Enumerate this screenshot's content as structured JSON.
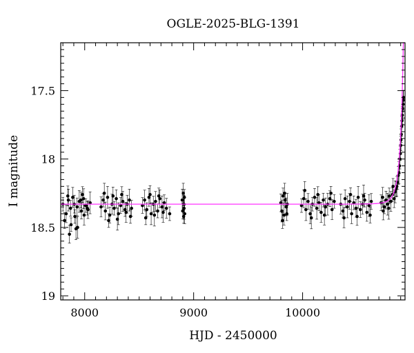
{
  "chart_data": {
    "type": "scatter",
    "title": "OGLE-2025-BLG-1391",
    "xlabel": "HJD - 2450000",
    "ylabel": "I magnitude",
    "xlim": [
      7780,
      10940
    ],
    "ylim": [
      17.15,
      19.03
    ],
    "y_inverted": true,
    "xticks": [
      8000,
      9000,
      10000
    ],
    "yticks": [
      17.5,
      18,
      18.5,
      19
    ],
    "ytick_labels": [
      "17.5",
      "18",
      "18.5",
      "19"
    ],
    "xtick_labels": [
      "8000",
      "9000",
      "10000"
    ],
    "baseline_mag": 18.33,
    "model_color": "#ff33ff",
    "marker_color": "#000000",
    "series": [
      {
        "values_note": "season",
        "x": [
          7800,
          7830,
          7850,
          7870,
          7890,
          7910,
          7930,
          7950,
          7970,
          7990,
          8010,
          8030,
          8050,
          7815,
          7845,
          7875,
          7905,
          7935,
          7965,
          7995,
          8025,
          7860,
          7920,
          7980
        ],
        "y": [
          18.33,
          18.4,
          18.3,
          18.36,
          18.28,
          18.42,
          18.35,
          18.31,
          18.38,
          18.29,
          18.34,
          18.37,
          18.32,
          18.45,
          18.27,
          18.48,
          18.33,
          18.5,
          18.3,
          18.41,
          18.36,
          18.55,
          18.51,
          18.26
        ]
      },
      {
        "values_note": "season",
        "x": [
          8150,
          8170,
          8190,
          8210,
          8230,
          8250,
          8270,
          8290,
          8310,
          8330,
          8350,
          8370,
          8390,
          8410,
          8430,
          8180,
          8220,
          8260,
          8300,
          8340,
          8380,
          8420
        ],
        "y": [
          18.35,
          18.3,
          18.38,
          18.28,
          18.41,
          18.33,
          18.36,
          18.29,
          18.4,
          18.34,
          18.31,
          18.37,
          18.33,
          18.3,
          18.36,
          18.25,
          18.45,
          18.27,
          18.44,
          18.26,
          18.39,
          18.42
        ]
      },
      {
        "values_note": "season",
        "x": [
          8530,
          8550,
          8570,
          8590,
          8610,
          8630,
          8650,
          8670,
          8690,
          8710,
          8730,
          8750,
          8560,
          8600,
          8640,
          8680,
          8720,
          8780
        ],
        "y": [
          18.34,
          18.3,
          18.37,
          18.28,
          18.4,
          18.33,
          18.31,
          18.38,
          18.29,
          18.35,
          18.32,
          18.36,
          18.43,
          18.26,
          18.41,
          18.27,
          18.39,
          18.4
        ]
      },
      {
        "values_note": "season",
        "x": [
          8895,
          8900,
          8905,
          8908,
          8910,
          8912,
          8915,
          8918
        ],
        "y": [
          18.3,
          18.38,
          18.25,
          18.42,
          18.33,
          18.36,
          18.28,
          18.4
        ]
      },
      {
        "values_note": "season",
        "x": [
          9800,
          9810,
          9820,
          9830,
          9840,
          9850,
          9860,
          9815,
          9835,
          9855
        ],
        "y": [
          18.32,
          18.38,
          18.27,
          18.41,
          18.3,
          18.35,
          18.33,
          18.45,
          18.25,
          18.4
        ]
      },
      {
        "values_note": "season",
        "x": [
          9990,
          10010,
          10030,
          10050,
          10070,
          10090,
          10110,
          10130,
          10150,
          10170,
          10190,
          10210,
          10230,
          10250,
          10270,
          10290,
          10020,
          10080,
          10140,
          10200,
          10260
        ],
        "y": [
          18.34,
          18.29,
          18.37,
          18.31,
          18.4,
          18.33,
          18.28,
          18.36,
          18.32,
          18.39,
          18.3,
          18.35,
          18.33,
          18.29,
          18.37,
          18.31,
          18.23,
          18.43,
          18.26,
          18.41,
          18.25
        ]
      },
      {
        "values_note": "season",
        "x": [
          10350,
          10370,
          10390,
          10410,
          10430,
          10450,
          10470,
          10490,
          10510,
          10530,
          10550,
          10570,
          10590,
          10610,
          10630,
          10380,
          10440,
          10500,
          10560,
          10620
        ],
        "y": [
          18.33,
          18.38,
          18.29,
          18.35,
          18.31,
          18.4,
          18.32,
          18.36,
          18.28,
          18.37,
          18.33,
          18.3,
          18.39,
          18.34,
          18.31,
          18.43,
          18.26,
          18.42,
          18.27,
          18.41
        ]
      },
      {
        "values_note": "season",
        "x": [
          10720,
          10735,
          10750,
          10765,
          10780,
          10795,
          10810,
          10825,
          10840,
          10850,
          10858,
          10865,
          10872,
          10878,
          10884,
          10889,
          10893,
          10897,
          10900,
          10903,
          10906,
          10909,
          10912,
          10915,
          10918,
          10921,
          10923,
          10925,
          10740,
          10790,
          10830
        ],
        "y": [
          18.32,
          18.28,
          18.35,
          18.3,
          18.33,
          18.27,
          18.31,
          18.26,
          18.29,
          18.24,
          18.22,
          18.2,
          18.17,
          18.12,
          18.1,
          18.05,
          18.0,
          17.96,
          17.9,
          17.86,
          17.82,
          17.76,
          17.72,
          17.68,
          17.63,
          17.6,
          17.57,
          17.55,
          18.38,
          18.36,
          18.2
        ]
      }
    ]
  }
}
